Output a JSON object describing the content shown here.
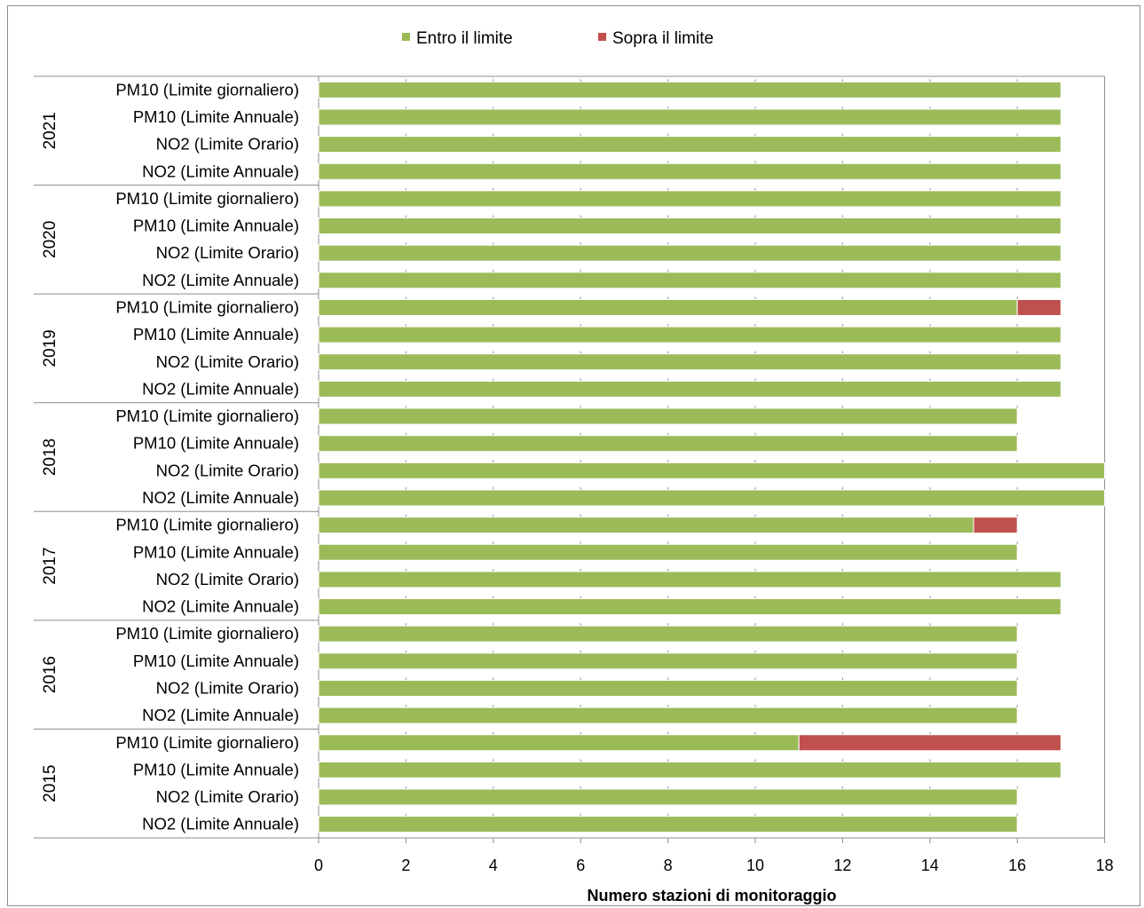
{
  "chart_data": {
    "type": "bar",
    "orientation": "horizontal",
    "stacked": true,
    "legend_position": "top",
    "grid": false,
    "xlabel": "Numero stazioni di monitoraggio",
    "xlim": [
      0,
      18
    ],
    "xticks": [
      "0",
      "2",
      "4",
      "6",
      "8",
      "10",
      "12",
      "14",
      "16",
      "18"
    ],
    "series": [
      {
        "name": "Entro il limite",
        "color": "#9bbb59"
      },
      {
        "name": "Sopra il limite",
        "color": "#c0504d"
      }
    ],
    "groups": [
      {
        "year": "2021",
        "rows": [
          {
            "label": "PM10 (Limite giornaliero)",
            "within": 17,
            "above": 0
          },
          {
            "label": "PM10 (Limite Annuale)",
            "within": 17,
            "above": 0
          },
          {
            "label": "NO2 (Limite Orario)",
            "within": 17,
            "above": 0
          },
          {
            "label": "NO2 (Limite Annuale)",
            "within": 17,
            "above": 0
          }
        ]
      },
      {
        "year": "2020",
        "rows": [
          {
            "label": "PM10 (Limite giornaliero)",
            "within": 17,
            "above": 0
          },
          {
            "label": "PM10 (Limite Annuale)",
            "within": 17,
            "above": 0
          },
          {
            "label": "NO2 (Limite Orario)",
            "within": 17,
            "above": 0
          },
          {
            "label": "NO2 (Limite Annuale)",
            "within": 17,
            "above": 0
          }
        ]
      },
      {
        "year": "2019",
        "rows": [
          {
            "label": "PM10 (Limite giornaliero)",
            "within": 16,
            "above": 1
          },
          {
            "label": "PM10 (Limite Annuale)",
            "within": 17,
            "above": 0
          },
          {
            "label": "NO2 (Limite Orario)",
            "within": 17,
            "above": 0
          },
          {
            "label": "NO2 (Limite Annuale)",
            "within": 17,
            "above": 0
          }
        ]
      },
      {
        "year": "2018",
        "rows": [
          {
            "label": "PM10 (Limite giornaliero)",
            "within": 16,
            "above": 0
          },
          {
            "label": "PM10 (Limite Annuale)",
            "within": 16,
            "above": 0
          },
          {
            "label": "NO2 (Limite Orario)",
            "within": 18,
            "above": 0
          },
          {
            "label": "NO2 (Limite Annuale)",
            "within": 18,
            "above": 0
          }
        ]
      },
      {
        "year": "2017",
        "rows": [
          {
            "label": "PM10 (Limite giornaliero)",
            "within": 15,
            "above": 1
          },
          {
            "label": "PM10 (Limite Annuale)",
            "within": 16,
            "above": 0
          },
          {
            "label": "NO2 (Limite Orario)",
            "within": 17,
            "above": 0
          },
          {
            "label": "NO2 (Limite Annuale)",
            "within": 17,
            "above": 0
          }
        ]
      },
      {
        "year": "2016",
        "rows": [
          {
            "label": "PM10 (Limite giornaliero)",
            "within": 16,
            "above": 0
          },
          {
            "label": "PM10 (Limite Annuale)",
            "within": 16,
            "above": 0
          },
          {
            "label": "NO2 (Limite Orario)",
            "within": 16,
            "above": 0
          },
          {
            "label": "NO2 (Limite Annuale)",
            "within": 16,
            "above": 0
          }
        ]
      },
      {
        "year": "2015",
        "rows": [
          {
            "label": "PM10 (Limite giornaliero)",
            "within": 11,
            "above": 6
          },
          {
            "label": "PM10 (Limite Annuale)",
            "within": 17,
            "above": 0
          },
          {
            "label": "NO2 (Limite Orario)",
            "within": 16,
            "above": 0
          },
          {
            "label": "NO2 (Limite Annuale)",
            "within": 16,
            "above": 0
          }
        ]
      }
    ]
  }
}
